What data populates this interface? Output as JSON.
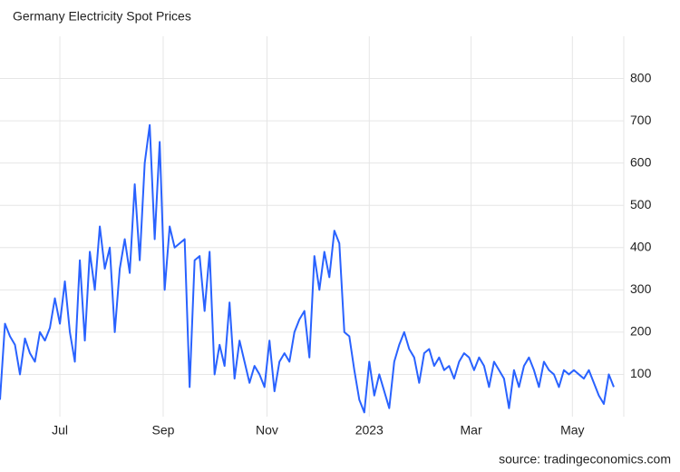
{
  "chart_data": {
    "type": "line",
    "title": "Germany Electricity Spot Prices",
    "source": "source: tradingeconomics.com",
    "xlim": [
      0,
      125
    ],
    "xticks": [
      {
        "value": 12,
        "label": "Jul"
      },
      {
        "value": 32.7,
        "label": "Sep"
      },
      {
        "value": 53.5,
        "label": "Nov"
      },
      {
        "value": 74,
        "label": "2023"
      },
      {
        "value": 94.4,
        "label": "Mar"
      },
      {
        "value": 114.7,
        "label": "May"
      }
    ],
    "ylim": [
      0,
      900
    ],
    "yticks": [
      100,
      200,
      300,
      400,
      500,
      600,
      700,
      800
    ],
    "grid": true,
    "series": [
      {
        "color": "#2962ff",
        "values": [
          40,
          220,
          190,
          170,
          100,
          185,
          150,
          130,
          200,
          180,
          210,
          280,
          220,
          320,
          200,
          130,
          370,
          180,
          390,
          300,
          450,
          350,
          400,
          200,
          350,
          420,
          340,
          550,
          370,
          600,
          690,
          420,
          650,
          300,
          450,
          400,
          410,
          420,
          70,
          370,
          380,
          250,
          390,
          100,
          170,
          120,
          270,
          90,
          180,
          130,
          80,
          120,
          100,
          70,
          180,
          60,
          130,
          150,
          130,
          200,
          230,
          250,
          140,
          380,
          300,
          390,
          330,
          440,
          410,
          200,
          190,
          110,
          40,
          10,
          130,
          50,
          100,
          60,
          20,
          130,
          170,
          200,
          160,
          140,
          80,
          150,
          160,
          120,
          140,
          110,
          120,
          90,
          130,
          150,
          140,
          110,
          140,
          120,
          70,
          130,
          110,
          90,
          20,
          110,
          70,
          120,
          140,
          110,
          70,
          130,
          110,
          100,
          70,
          110,
          100,
          110,
          100,
          90,
          110,
          80,
          50,
          30,
          100,
          70
        ]
      }
    ]
  }
}
